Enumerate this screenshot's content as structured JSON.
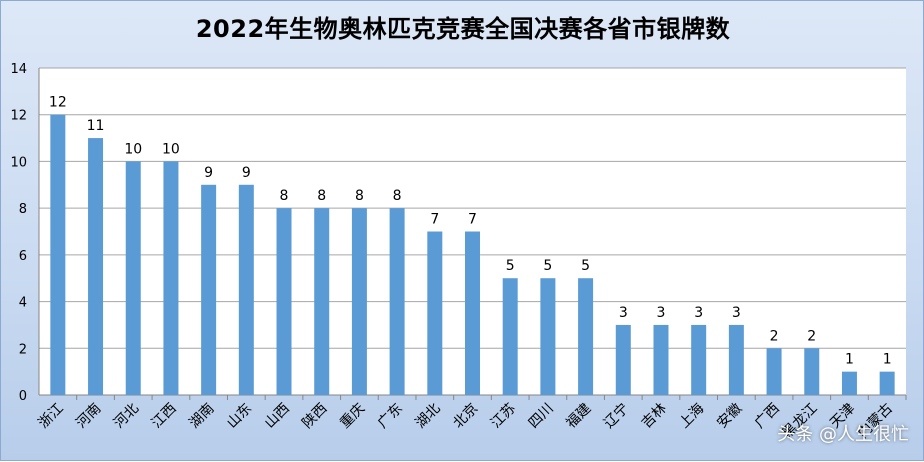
{
  "chart_data": {
    "type": "bar",
    "title": "2022年生物奥林匹克竞赛全国决赛各省市银牌数",
    "categories": [
      "浙江",
      "河南",
      "河北",
      "江西",
      "湖南",
      "山东",
      "山西",
      "陕西",
      "重庆",
      "广东",
      "湖北",
      "北京",
      "江苏",
      "四川",
      "福建",
      "辽宁",
      "吉林",
      "上海",
      "安徽",
      "广西",
      "黑龙江",
      "天津",
      "内蒙古"
    ],
    "values": [
      12,
      11,
      10,
      10,
      9,
      9,
      8,
      8,
      8,
      8,
      7,
      7,
      5,
      5,
      5,
      3,
      3,
      3,
      3,
      2,
      2,
      1,
      1
    ],
    "ylim": [
      0,
      14
    ],
    "yticks": [
      0,
      2,
      4,
      6,
      8,
      10,
      12,
      14
    ],
    "grid": true,
    "bar_color": "#5b9bd5",
    "background_color": "#c9daf1"
  },
  "watermark": "头条 @人生很忙"
}
